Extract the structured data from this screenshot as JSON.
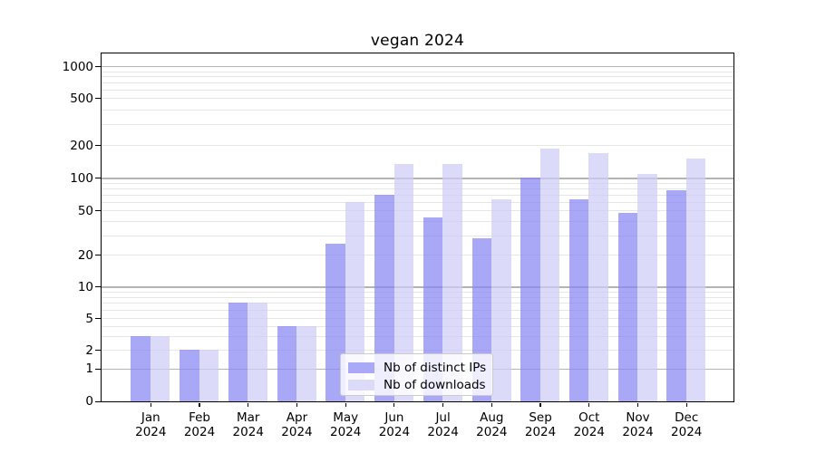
{
  "chart_data": {
    "type": "bar",
    "title": "vegan 2024",
    "categories": [
      "Jan",
      "Feb",
      "Mar",
      "Apr",
      "May",
      "Jun",
      "Jul",
      "Aug",
      "Sep",
      "Oct",
      "Nov",
      "Dec"
    ],
    "x_axis": {
      "year_label": "2024"
    },
    "series": [
      {
        "name": "Nb of distinct IPs",
        "color": "#a9a9f7",
        "values": [
          3,
          2,
          7,
          4,
          25,
          70,
          43,
          28,
          100,
          64,
          48,
          77
        ]
      },
      {
        "name": "Nb of downloads",
        "color": "#dbdbf9",
        "values": [
          3,
          2,
          7,
          4,
          60,
          135,
          135,
          64,
          188,
          170,
          108,
          150
        ]
      }
    ],
    "y_axis": {
      "scale": "symlog",
      "ticks": [
        0,
        1,
        2,
        5,
        10,
        20,
        50,
        100,
        200,
        500,
        1000
      ],
      "tick_labels": [
        "0",
        "1",
        "2",
        "5",
        "10",
        "20",
        "50",
        "100",
        "200",
        "500",
        "1000"
      ],
      "range": [
        0,
        1300
      ]
    },
    "legend": {
      "position": "lower center"
    },
    "grid": true
  },
  "colors": {
    "background": "#ffffff",
    "major_grid": "#b4b4b4",
    "minor_grid": "#e6e6e6",
    "axis": "#000000",
    "legend_border": "#cccccc"
  }
}
